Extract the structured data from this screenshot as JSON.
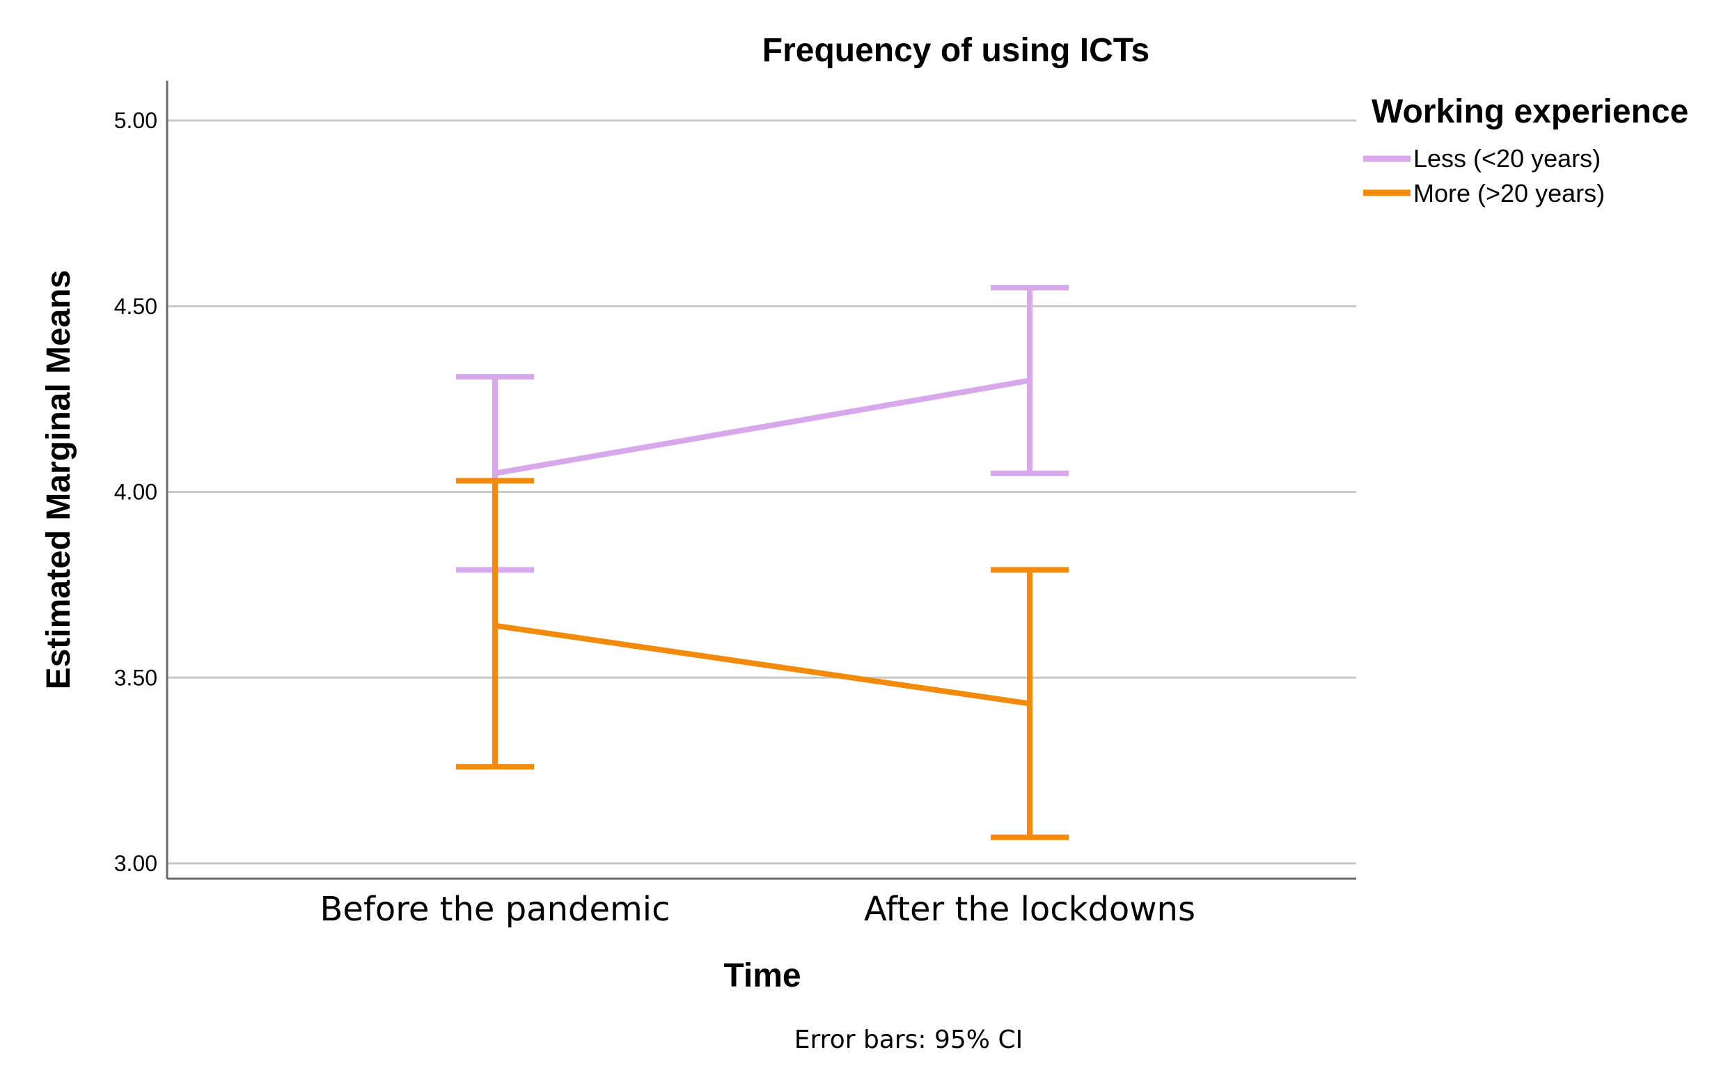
{
  "chart_data": {
    "type": "line",
    "title": "Frequency of using ICTs",
    "xlabel": "Time",
    "ylabel": "Estimated Marginal Means",
    "categories": [
      "Before the pandemic",
      "After the lockdowns"
    ],
    "ylim": [
      3.0,
      5.0
    ],
    "yticks": [
      3.0,
      3.5,
      4.0,
      4.5,
      5.0
    ],
    "ytick_labels": [
      "3.00",
      "3.50",
      "4.00",
      "4.50",
      "5.00"
    ],
    "grid": true,
    "legend_title": "Working experience",
    "legend_position": "top-right",
    "note": "Error bars: 95% CI",
    "series": [
      {
        "name": "Less (<20 years)",
        "color": "#D7A8EB",
        "values": [
          4.05,
          4.3
        ],
        "ci_low": [
          3.79,
          4.05
        ],
        "ci_high": [
          4.31,
          4.55
        ]
      },
      {
        "name": "More (>20 years)",
        "color": "#F28A0C",
        "values": [
          3.64,
          3.43
        ],
        "ci_low": [
          3.26,
          3.07
        ],
        "ci_high": [
          4.03,
          3.79
        ]
      }
    ]
  }
}
